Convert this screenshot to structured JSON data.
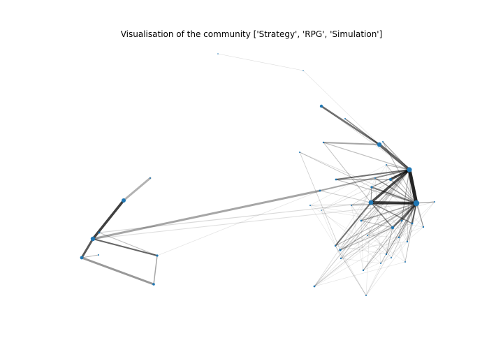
{
  "title": "Visualisation of the community ['Strategy', 'RPG', 'Simulation']",
  "colors": {
    "node": "#1f77b4",
    "edge": "#000000"
  }
}
